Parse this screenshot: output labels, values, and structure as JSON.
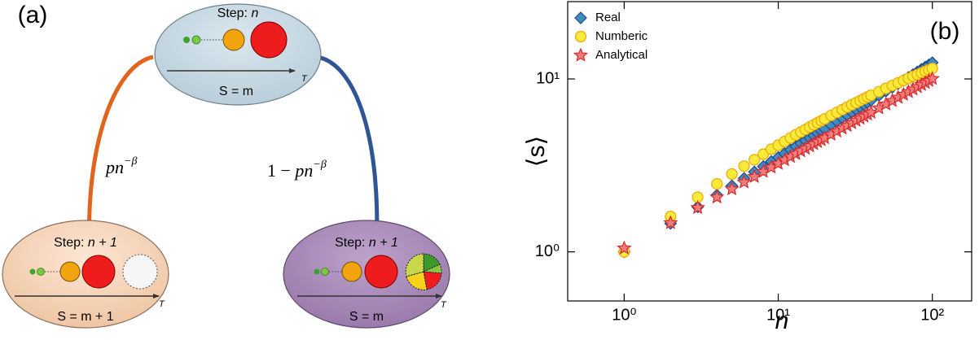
{
  "panel_a": {
    "panel_label": "(a)",
    "nodes": [
      {
        "step": "Step:",
        "n": "n",
        "sum": "S = m",
        "axis": "T"
      },
      {
        "step": "Step:",
        "n": "n + 1",
        "sum": "S = m + 1",
        "axis": "T"
      },
      {
        "step": "Step:",
        "n": "n + 1",
        "sum": "S = m",
        "axis": "T"
      }
    ],
    "edges": [
      {
        "base": "pn",
        "exponent": "−β"
      },
      {
        "prefix": "1 − ",
        "base": "pn",
        "exponent": "−β"
      }
    ]
  },
  "chart_data": {
    "type": "scatter",
    "panel_label": "(b)",
    "xlabel": "n",
    "ylabel": "⟨s⟩",
    "log_x": true,
    "log_y": true,
    "legend": "upper left",
    "xlim": [
      0.43,
      180
    ],
    "ylim": [
      0.52,
      28
    ],
    "xticks": [
      {
        "value": 1,
        "label": "10⁰"
      },
      {
        "value": 10,
        "label": "10¹"
      },
      {
        "value": 100,
        "label": "10²"
      }
    ],
    "yticks": [
      {
        "value": 1,
        "label": "10⁰"
      },
      {
        "value": 10,
        "label": "10¹"
      }
    ],
    "x": [
      1,
      2,
      3,
      4,
      5,
      6,
      7,
      8,
      9,
      10,
      11,
      12,
      13,
      14,
      15,
      16,
      17,
      18,
      19,
      20,
      22,
      24,
      26,
      28,
      30,
      32,
      34,
      36,
      38,
      40,
      45,
      50,
      55,
      60,
      65,
      70,
      75,
      80,
      85,
      90,
      95,
      100
    ],
    "series": [
      {
        "name": "Real",
        "marker": "diamond",
        "color": "#3d8cc4",
        "edge": "#1f4a8a",
        "values": [
          1.0,
          1.46,
          1.82,
          2.13,
          2.41,
          2.66,
          2.9,
          3.12,
          3.33,
          3.52,
          3.71,
          3.89,
          4.07,
          4.24,
          4.4,
          4.56,
          4.71,
          4.86,
          5.01,
          5.15,
          5.42,
          5.69,
          5.94,
          6.19,
          6.43,
          6.66,
          6.88,
          7.1,
          7.31,
          7.52,
          8.02,
          8.5,
          8.95,
          9.39,
          9.81,
          10.22,
          10.61,
          10.99,
          11.36,
          11.72,
          12.07,
          12.42
        ]
      },
      {
        "name": "Numberic",
        "marker": "circle",
        "color": "#f7ea3a",
        "edge": "#f0a800",
        "values": [
          1.0,
          1.6,
          2.07,
          2.47,
          2.82,
          3.13,
          3.41,
          3.67,
          3.92,
          4.14,
          4.35,
          4.56,
          4.75,
          4.93,
          5.1,
          5.27,
          5.43,
          5.58,
          5.73,
          5.87,
          6.15,
          6.4,
          6.64,
          6.87,
          7.09,
          7.29,
          7.49,
          7.68,
          7.86,
          8.04,
          8.44,
          8.82,
          9.17,
          9.49,
          9.79,
          10.08,
          10.35,
          10.6,
          10.84,
          11.07,
          11.29,
          11.5
        ]
      },
      {
        "name": "Analytical",
        "marker": "star",
        "color": "#f07c7c",
        "edge": "#d62a2a",
        "values": [
          1.05,
          1.47,
          1.8,
          2.07,
          2.31,
          2.53,
          2.72,
          2.91,
          3.08,
          3.24,
          3.4,
          3.55,
          3.69,
          3.83,
          3.96,
          4.09,
          4.21,
          4.33,
          4.44,
          4.56,
          4.77,
          4.98,
          5.18,
          5.37,
          5.56,
          5.74,
          5.91,
          6.08,
          6.24,
          6.4,
          6.78,
          7.14,
          7.48,
          7.81,
          8.12,
          8.42,
          8.71,
          8.99,
          9.26,
          9.52,
          9.78,
          10.03
        ]
      }
    ]
  }
}
